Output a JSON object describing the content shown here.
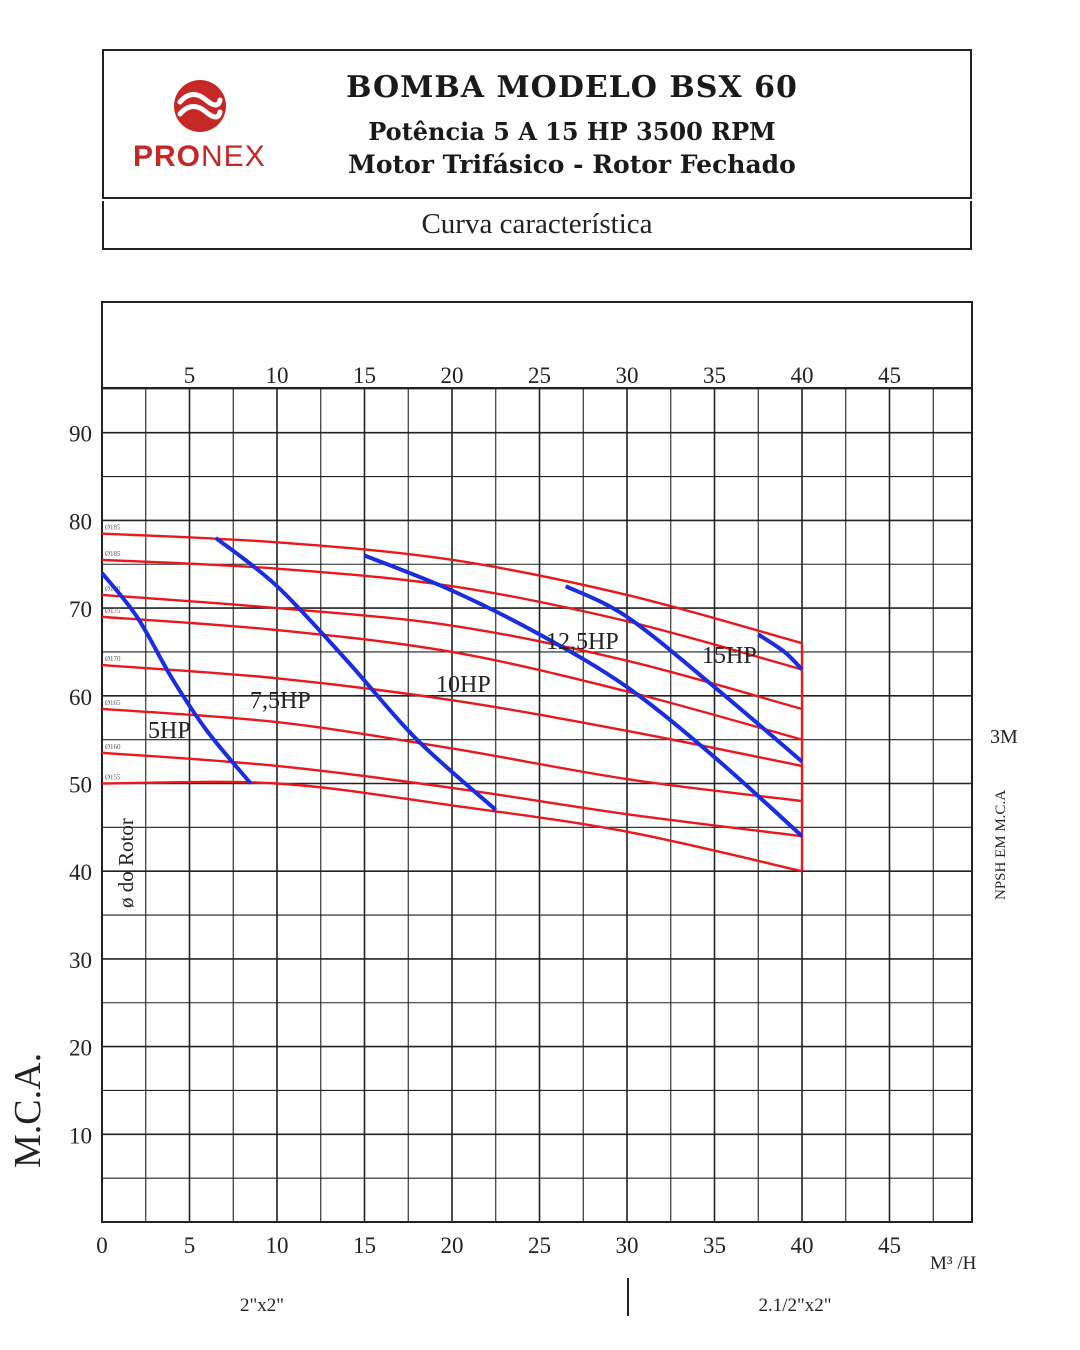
{
  "header": {
    "logo": {
      "brand_bold": "PRO",
      "brand_light": "NEX",
      "icon": "pronex-swirl-icon",
      "color": "#c62828"
    },
    "title": "BOMBA MODELO BSX 60",
    "subtitle1": "Potência 5 A 15 HP 3500 RPM",
    "subtitle2": "Motor Trifásico - Rotor Fechado",
    "section": "Curva característica"
  },
  "chart_data": {
    "type": "line",
    "title": "",
    "xlabel": "M³ /H",
    "ylabel": "M.C.A.",
    "y2label": "NPSH EM M.C.A",
    "npsh_value_label": "3M",
    "rotor_label": "ø do Rotor",
    "xlim": [
      0,
      50
    ],
    "ylim": [
      0,
      95
    ],
    "x_ticks": [
      0,
      5,
      10,
      15,
      20,
      25,
      30,
      35,
      40,
      45
    ],
    "x_ticks_top": [
      5,
      10,
      15,
      20,
      25,
      30,
      35,
      40,
      45
    ],
    "y_ticks": [
      10,
      20,
      30,
      40,
      50,
      60,
      70,
      80,
      90
    ],
    "grid": true,
    "connection_labels": [
      "2\"x2\"",
      "2.1/2\"x2\""
    ],
    "colors": {
      "rotor_curves": "#e8181c",
      "power_curves": "#1a2de0",
      "grid": "#222222"
    },
    "rotor_curves": [
      {
        "label": "Ø185",
        "x": [
          0,
          10,
          20,
          30,
          40
        ],
        "y": [
          78.5,
          77.5,
          75.5,
          71.5,
          66
        ]
      },
      {
        "label": "Ø185",
        "x": [
          0,
          10,
          20,
          30,
          40
        ],
        "y": [
          75.5,
          74.5,
          72.5,
          68.5,
          63
        ]
      },
      {
        "label": "Ø180",
        "x": [
          0,
          10,
          20,
          30,
          40
        ],
        "y": [
          71.5,
          70,
          68,
          64,
          58.5
        ]
      },
      {
        "label": "Ø175",
        "x": [
          0,
          10,
          20,
          30,
          40
        ],
        "y": [
          69,
          67.5,
          65,
          60.5,
          55
        ]
      },
      {
        "label": "Ø170",
        "x": [
          0,
          10,
          20,
          30,
          40
        ],
        "y": [
          63.5,
          62,
          59.5,
          56,
          52
        ]
      },
      {
        "label": "Ø165",
        "x": [
          0,
          10,
          20,
          30,
          40
        ],
        "y": [
          58.5,
          57,
          54,
          50.5,
          48
        ]
      },
      {
        "label": "Ø160",
        "x": [
          0,
          10,
          20,
          30,
          40
        ],
        "y": [
          53.5,
          52,
          49.5,
          46.5,
          44
        ]
      },
      {
        "label": "Ø155",
        "x": [
          0,
          10,
          20,
          30,
          40
        ],
        "y": [
          50,
          50,
          47.5,
          44.5,
          40
        ]
      }
    ],
    "power_curves": [
      {
        "label": "5HP",
        "x": [
          0,
          2,
          4,
          6,
          8.5
        ],
        "y": [
          74,
          69,
          62,
          56,
          50
        ]
      },
      {
        "label": "7,5HP",
        "x": [
          6.5,
          10,
          14,
          18,
          22.5
        ],
        "y": [
          78,
          72.5,
          64,
          55,
          47
        ]
      },
      {
        "label": "10HP",
        "x": [
          15,
          20,
          25,
          30,
          35,
          40
        ],
        "y": [
          76,
          72,
          67,
          61,
          53,
          44
        ]
      },
      {
        "label": "12,5HP",
        "x": [
          26.5,
          30,
          35,
          40
        ],
        "y": [
          72.5,
          69,
          61,
          52.5
        ]
      },
      {
        "label": "15HP",
        "x": [
          37.5,
          39,
          40
        ],
        "y": [
          67,
          65,
          63
        ]
      }
    ]
  }
}
